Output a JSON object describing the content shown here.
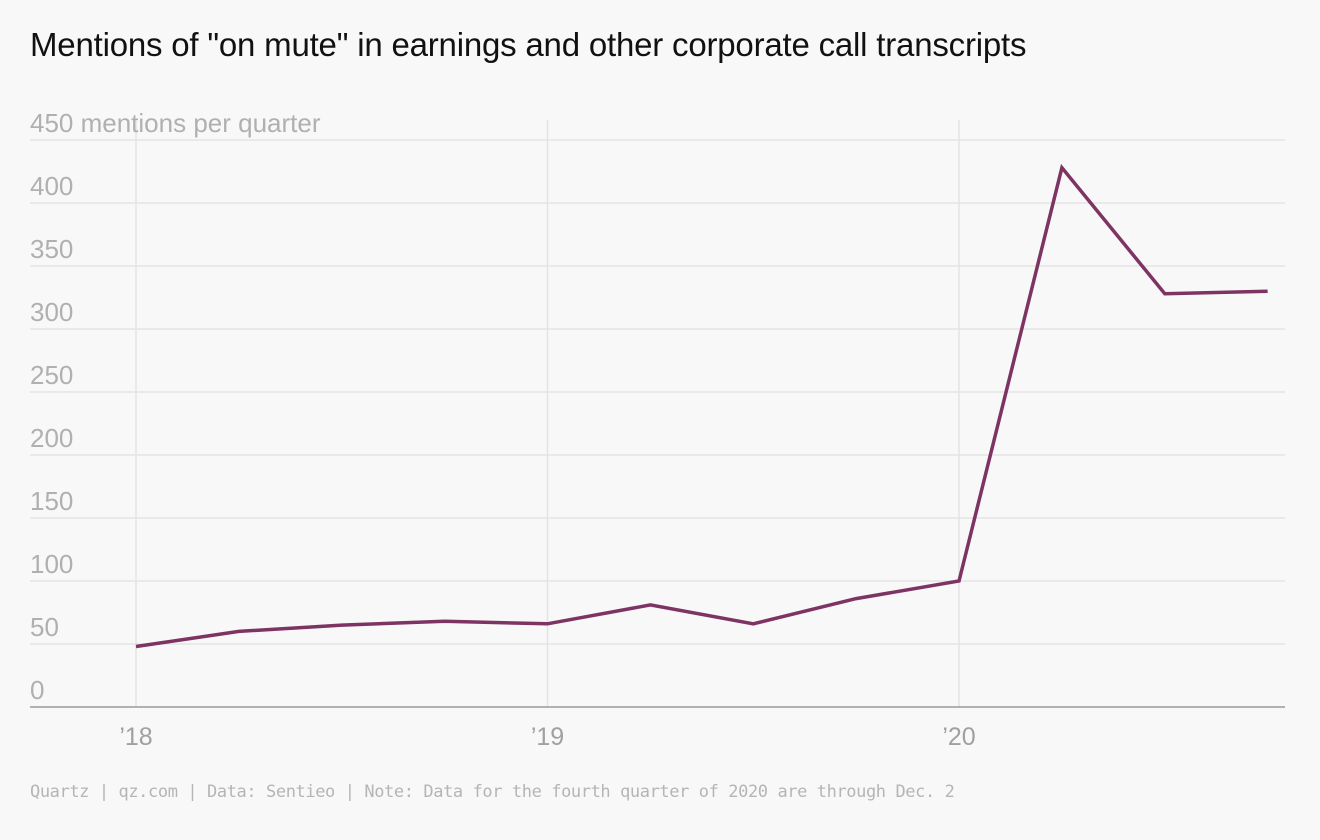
{
  "title": "Mentions of \"on mute\" in earnings and other corporate call transcripts",
  "footer": "Quartz | qz.com | Data: Sentieo | Note: Data for the fourth quarter of 2020 are through Dec. 2",
  "colors": {
    "line": "#7d3462",
    "grid": "#e4e4e4",
    "axis": "#999999",
    "tick_text": "#b0b0b0",
    "background": "#f8f8f8"
  },
  "chart_data": {
    "type": "line",
    "title": "Mentions of \"on mute\" in earnings and other corporate call transcripts",
    "ylabel": "mentions per quarter",
    "ylim": [
      0,
      450
    ],
    "yticks": [
      0,
      50,
      100,
      150,
      200,
      250,
      300,
      350,
      400,
      450
    ],
    "ytick_labels": [
      "0",
      "50",
      "100",
      "150",
      "200",
      "250",
      "300",
      "350",
      "400",
      "450 mentions per quarter"
    ],
    "xlim": [
      2017.74,
      2020.81
    ],
    "xticks": [
      2018,
      2019,
      2020
    ],
    "xtick_labels": [
      "’18",
      "’19",
      "’20"
    ],
    "grid": true,
    "series": [
      {
        "x": [
          2018.0,
          2018.25,
          2018.5,
          2018.75,
          2019.0,
          2019.25,
          2019.5,
          2019.75,
          2020.0,
          2020.25,
          2020.5,
          2020.75
        ],
        "values": [
          48,
          60,
          65,
          68,
          66,
          81,
          66,
          86,
          100,
          428,
          328,
          330
        ]
      }
    ]
  }
}
